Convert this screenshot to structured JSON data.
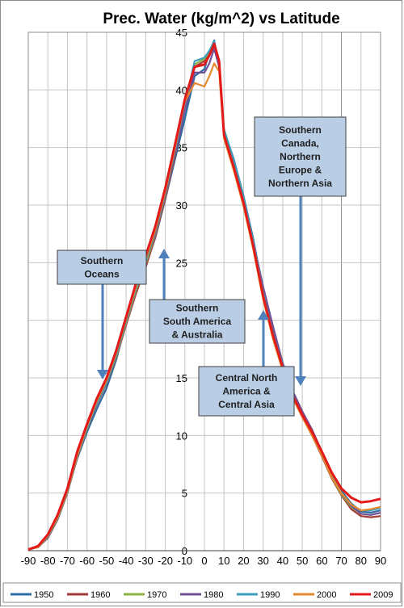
{
  "chart_data": {
    "type": "line",
    "title": "Prec. Water (kg/m^2) vs Latitude",
    "xlabel": "",
    "ylabel": "",
    "xlim": [
      -90,
      90
    ],
    "ylim": [
      0,
      45
    ],
    "x_ticks": [
      -90,
      -80,
      -70,
      -60,
      -50,
      -40,
      -30,
      -20,
      -10,
      0,
      10,
      20,
      30,
      40,
      50,
      60,
      70,
      80,
      90
    ],
    "y_ticks": [
      0,
      5,
      10,
      15,
      20,
      25,
      30,
      35,
      40,
      45
    ],
    "grid": true,
    "legend_position": "bottom",
    "x": [
      -90,
      -85,
      -80,
      -75,
      -70,
      -65,
      -60,
      -55,
      -50,
      -45,
      -40,
      -35,
      -30,
      -25,
      -20,
      -15,
      -10,
      -5,
      0,
      2.5,
      5,
      7.5,
      10,
      15,
      20,
      25,
      30,
      35,
      40,
      45,
      50,
      55,
      60,
      65,
      70,
      75,
      80,
      85,
      90
    ],
    "series": [
      {
        "name": "1950",
        "color": "#2e6da4",
        "values": [
          0.1,
          0.4,
          1.3,
          3.0,
          5.2,
          8.0,
          10.3,
          12.3,
          14.1,
          16.6,
          19.8,
          22.5,
          24.7,
          27.2,
          30.5,
          34.0,
          37.5,
          41.2,
          41.8,
          43.3,
          44.3,
          42.0,
          36.5,
          34.0,
          30.8,
          27.0,
          22.5,
          19.0,
          16.0,
          13.8,
          12.0,
          10.5,
          8.6,
          6.5,
          5.2,
          4.1,
          3.4,
          3.3,
          3.5
        ]
      },
      {
        "name": "1960",
        "color": "#a23b36",
        "values": [
          0.1,
          0.3,
          1.1,
          2.7,
          5.0,
          8.1,
          10.5,
          12.7,
          14.5,
          16.8,
          19.6,
          22.3,
          24.6,
          27.3,
          30.6,
          34.3,
          38.3,
          42.0,
          42.5,
          43.2,
          43.8,
          42.4,
          36.0,
          33.2,
          30.0,
          26.3,
          22.0,
          18.6,
          15.8,
          13.3,
          11.6,
          10.0,
          8.2,
          6.3,
          4.8,
          3.6,
          3.0,
          2.9,
          3.0
        ]
      },
      {
        "name": "1970",
        "color": "#8eb044",
        "values": [
          0.1,
          0.3,
          1.2,
          2.8,
          5.1,
          8.2,
          10.6,
          12.8,
          14.6,
          16.9,
          19.8,
          22.6,
          24.9,
          27.5,
          30.8,
          34.5,
          38.5,
          42.2,
          42.7,
          43.3,
          43.6,
          42.2,
          36.1,
          33.3,
          30.1,
          26.4,
          22.0,
          18.6,
          15.8,
          13.4,
          11.7,
          10.1,
          8.3,
          6.4,
          4.9,
          3.8,
          3.2,
          3.1,
          3.3
        ]
      },
      {
        "name": "1980",
        "color": "#6f4f96",
        "values": [
          0.1,
          0.3,
          1.2,
          2.9,
          5.2,
          8.3,
          10.7,
          13.0,
          15.0,
          17.5,
          20.4,
          22.9,
          25.1,
          27.6,
          30.9,
          34.5,
          38.2,
          41.5,
          41.5,
          42.3,
          43.6,
          42.0,
          36.3,
          33.7,
          30.5,
          26.8,
          22.9,
          19.5,
          16.3,
          13.9,
          12.1,
          10.5,
          8.6,
          6.6,
          5.0,
          3.9,
          3.2,
          3.1,
          3.3
        ]
      },
      {
        "name": "1990",
        "color": "#3e9dbb",
        "values": [
          0.1,
          0.3,
          1.2,
          2.8,
          5.1,
          8.2,
          10.6,
          12.8,
          14.6,
          17.0,
          19.9,
          22.7,
          25.1,
          27.8,
          31.1,
          34.8,
          38.8,
          42.5,
          42.8,
          43.4,
          44.2,
          42.3,
          36.6,
          33.9,
          30.7,
          26.8,
          22.4,
          18.9,
          16.1,
          13.6,
          11.8,
          10.2,
          8.4,
          6.5,
          5.0,
          4.0,
          3.5,
          3.5,
          3.7
        ]
      },
      {
        "name": "2000",
        "color": "#e58a2e",
        "values": [
          0.1,
          0.3,
          1.3,
          2.9,
          5.2,
          8.3,
          10.8,
          13.0,
          14.8,
          17.2,
          20.1,
          22.9,
          25.3,
          27.9,
          31.2,
          35.0,
          39.0,
          40.6,
          40.3,
          41.2,
          42.3,
          41.6,
          35.8,
          33.0,
          29.9,
          26.1,
          21.8,
          18.4,
          15.6,
          13.3,
          11.6,
          10.0,
          8.3,
          6.4,
          5.0,
          4.0,
          3.5,
          3.6,
          3.8
        ]
      },
      {
        "name": "2009",
        "color": "#e41a1a",
        "values": [
          0.1,
          0.4,
          1.4,
          3.1,
          5.4,
          8.6,
          11.0,
          13.2,
          15.0,
          17.4,
          20.3,
          23.2,
          25.6,
          28.2,
          31.5,
          35.3,
          39.2,
          42.0,
          42.2,
          43.0,
          44.0,
          42.5,
          36.1,
          33.3,
          30.2,
          26.4,
          22.1,
          18.7,
          15.9,
          13.5,
          11.8,
          10.3,
          8.6,
          6.8,
          5.4,
          4.6,
          4.2,
          4.3,
          4.5
        ]
      }
    ],
    "annotations": [
      {
        "id": "southern-oceans",
        "lines": [
          "Southern",
          "Oceans"
        ]
      },
      {
        "id": "southern-south-america",
        "lines": [
          "Southern",
          "South America",
          "& Australia"
        ]
      },
      {
        "id": "central-north-america",
        "lines": [
          "Central North",
          "America &",
          "Central Asia"
        ]
      },
      {
        "id": "southern-canada",
        "lines": [
          "Southern",
          "Canada,",
          "Northern",
          "Europe &",
          "Northern Asia"
        ]
      }
    ]
  }
}
